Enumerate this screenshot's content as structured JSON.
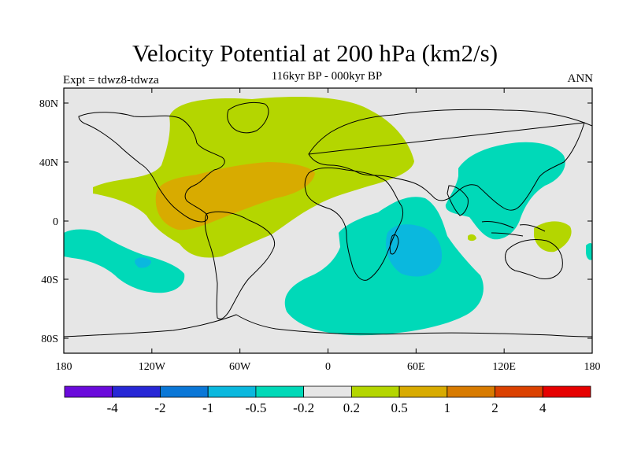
{
  "title": "Velocity Potential at 200 hPa (km2/s)",
  "subtitle": "116kyr BP - 000kyr BP",
  "left_label": "Expt = tdwz8-tdwza",
  "right_label": "ANN",
  "axes": {
    "lat_ticks": [
      "80N",
      "40N",
      "0",
      "40S",
      "80S"
    ],
    "lon_ticks": [
      "180",
      "120W",
      "60W",
      "0",
      "60E",
      "120E",
      "180"
    ]
  },
  "colorbar": {
    "colors": [
      "#6a0adb",
      "#2727d6",
      "#0a77d7",
      "#0ab8de",
      "#00d9b8",
      "#e6e6e6",
      "#b4d600",
      "#d8ab00",
      "#d87b00",
      "#db4100",
      "#e60000"
    ],
    "labels": [
      "-4",
      "-2",
      "-1",
      "-0.5",
      "-0.2",
      "0.2",
      "0.5",
      "1",
      "2",
      "4"
    ]
  },
  "map_colors": {
    "background": "#e6e6e6",
    "pos_low": "#b4d600",
    "pos_mid": "#d8ab00",
    "neg_low": "#00d9b8",
    "neg_mid": "#0ab8de"
  }
}
